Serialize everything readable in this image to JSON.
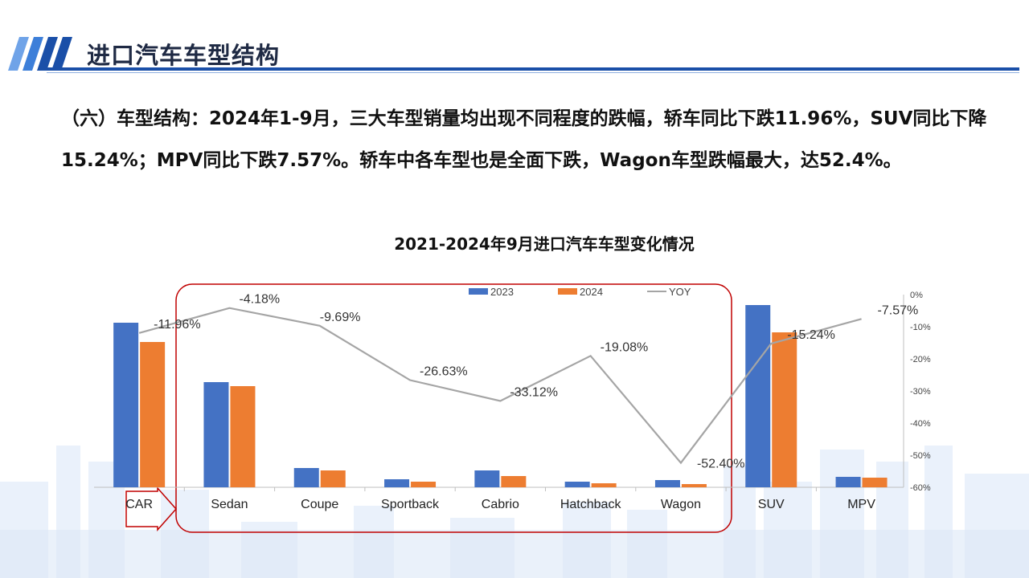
{
  "header": {
    "title": "进口汽车车型结构",
    "accent_color": "#1a4fa8"
  },
  "body_text": "（六）车型结构：2024年1-9月，三大车型销量均出现不同程度的跌幅，轿车同比下跌11.96%，SUV同比下降15.24%；MPV同比下跌7.57%。轿车中各车型也是全面下跌，Wagon车型跌幅最大，达52.4%。",
  "chart_data": {
    "type": "bar",
    "title": "2021-2024年9月进口汽车车型变化情况",
    "categories": [
      "CAR",
      "Sedan",
      "Coupe",
      "Sportback",
      "Cabrio",
      "Hatchback",
      "Wagon",
      "SUV",
      "MPV"
    ],
    "series": [
      {
        "name": "2023",
        "type": "bar",
        "color": "#4472c4",
        "values": [
          205,
          131,
          24,
          10,
          21,
          7,
          9,
          227,
          13
        ]
      },
      {
        "name": "2024",
        "type": "bar",
        "color": "#ed7d31",
        "values": [
          181,
          126,
          21,
          7,
          14,
          5,
          4,
          193,
          12
        ]
      },
      {
        "name": "YOY",
        "type": "line",
        "axis": "right",
        "color": "#a5a5a5",
        "values": [
          -11.96,
          -4.18,
          -9.69,
          -26.63,
          -33.12,
          -19.08,
          -52.4,
          -15.24,
          -7.57
        ]
      }
    ],
    "data_labels": [
      "-11.96%",
      "-4.18%",
      "-9.69%",
      "-26.63%",
      "-33.12%",
      "-19.08%",
      "-52.40%",
      "-15.24%",
      "-7.57%"
    ],
    "y2_ticks": [
      "0%",
      "-10%",
      "-20%",
      "-30%",
      "-40%",
      "-50%",
      "-60%"
    ],
    "y2lim": [
      -60,
      0
    ],
    "ylim": [
      0,
      240
    ],
    "grid": false,
    "legend_placement": "top"
  }
}
